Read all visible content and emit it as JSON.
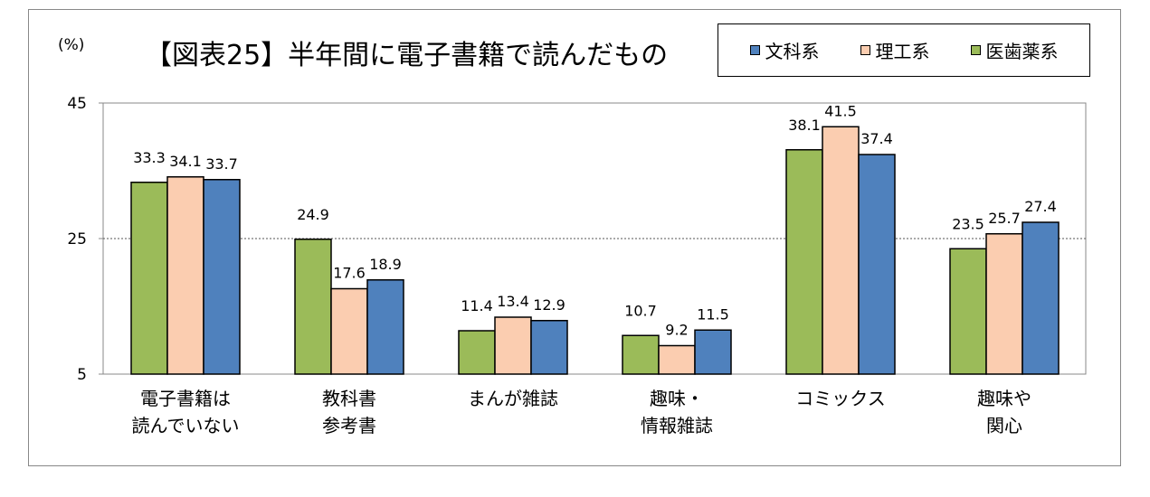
{
  "unit_label": "(%)",
  "chart_data": {
    "type": "bar",
    "title": "【図表25】半年間に電子書籍で読んだもの",
    "ylabel": "(%)",
    "ylim": [
      5,
      45
    ],
    "yticks": [
      "45",
      "25",
      "5"
    ],
    "gridline_at": 25,
    "legend_position": "top-right",
    "categories": [
      [
        "電子書籍は",
        "読んでいない"
      ],
      [
        "教科書",
        "参考書"
      ],
      [
        "まんが雑誌"
      ],
      [
        "趣味・",
        "情報雑誌"
      ],
      [
        "コミックス"
      ],
      [
        "趣味や",
        "関心"
      ]
    ],
    "series": [
      {
        "name": "医歯薬系",
        "color": "#9BBB59",
        "values": [
          33.3,
          24.9,
          11.4,
          10.7,
          38.1,
          23.5
        ]
      },
      {
        "name": "理工系",
        "color": "#FBCDB0",
        "values": [
          34.1,
          17.6,
          13.4,
          9.2,
          41.5,
          25.7
        ]
      },
      {
        "name": "文科系",
        "color": "#4F81BD",
        "values": [
          33.7,
          18.9,
          12.9,
          11.5,
          37.4,
          27.4
        ]
      }
    ],
    "value_labels": [
      [
        "33.3",
        "24.9",
        "11.4",
        "10.7",
        "38.1",
        "23.5"
      ],
      [
        "34.1",
        "17.6",
        "13.4",
        "9.2",
        "41.5",
        "25.7"
      ],
      [
        "33.7",
        "18.9",
        "12.9",
        "11.5",
        "37.4",
        "27.4"
      ]
    ],
    "legend": [
      {
        "label": "文科系",
        "color": "#4F81BD"
      },
      {
        "label": "理工系",
        "color": "#FBCDB0"
      },
      {
        "label": "医歯薬系",
        "color": "#9BBB59"
      }
    ]
  }
}
